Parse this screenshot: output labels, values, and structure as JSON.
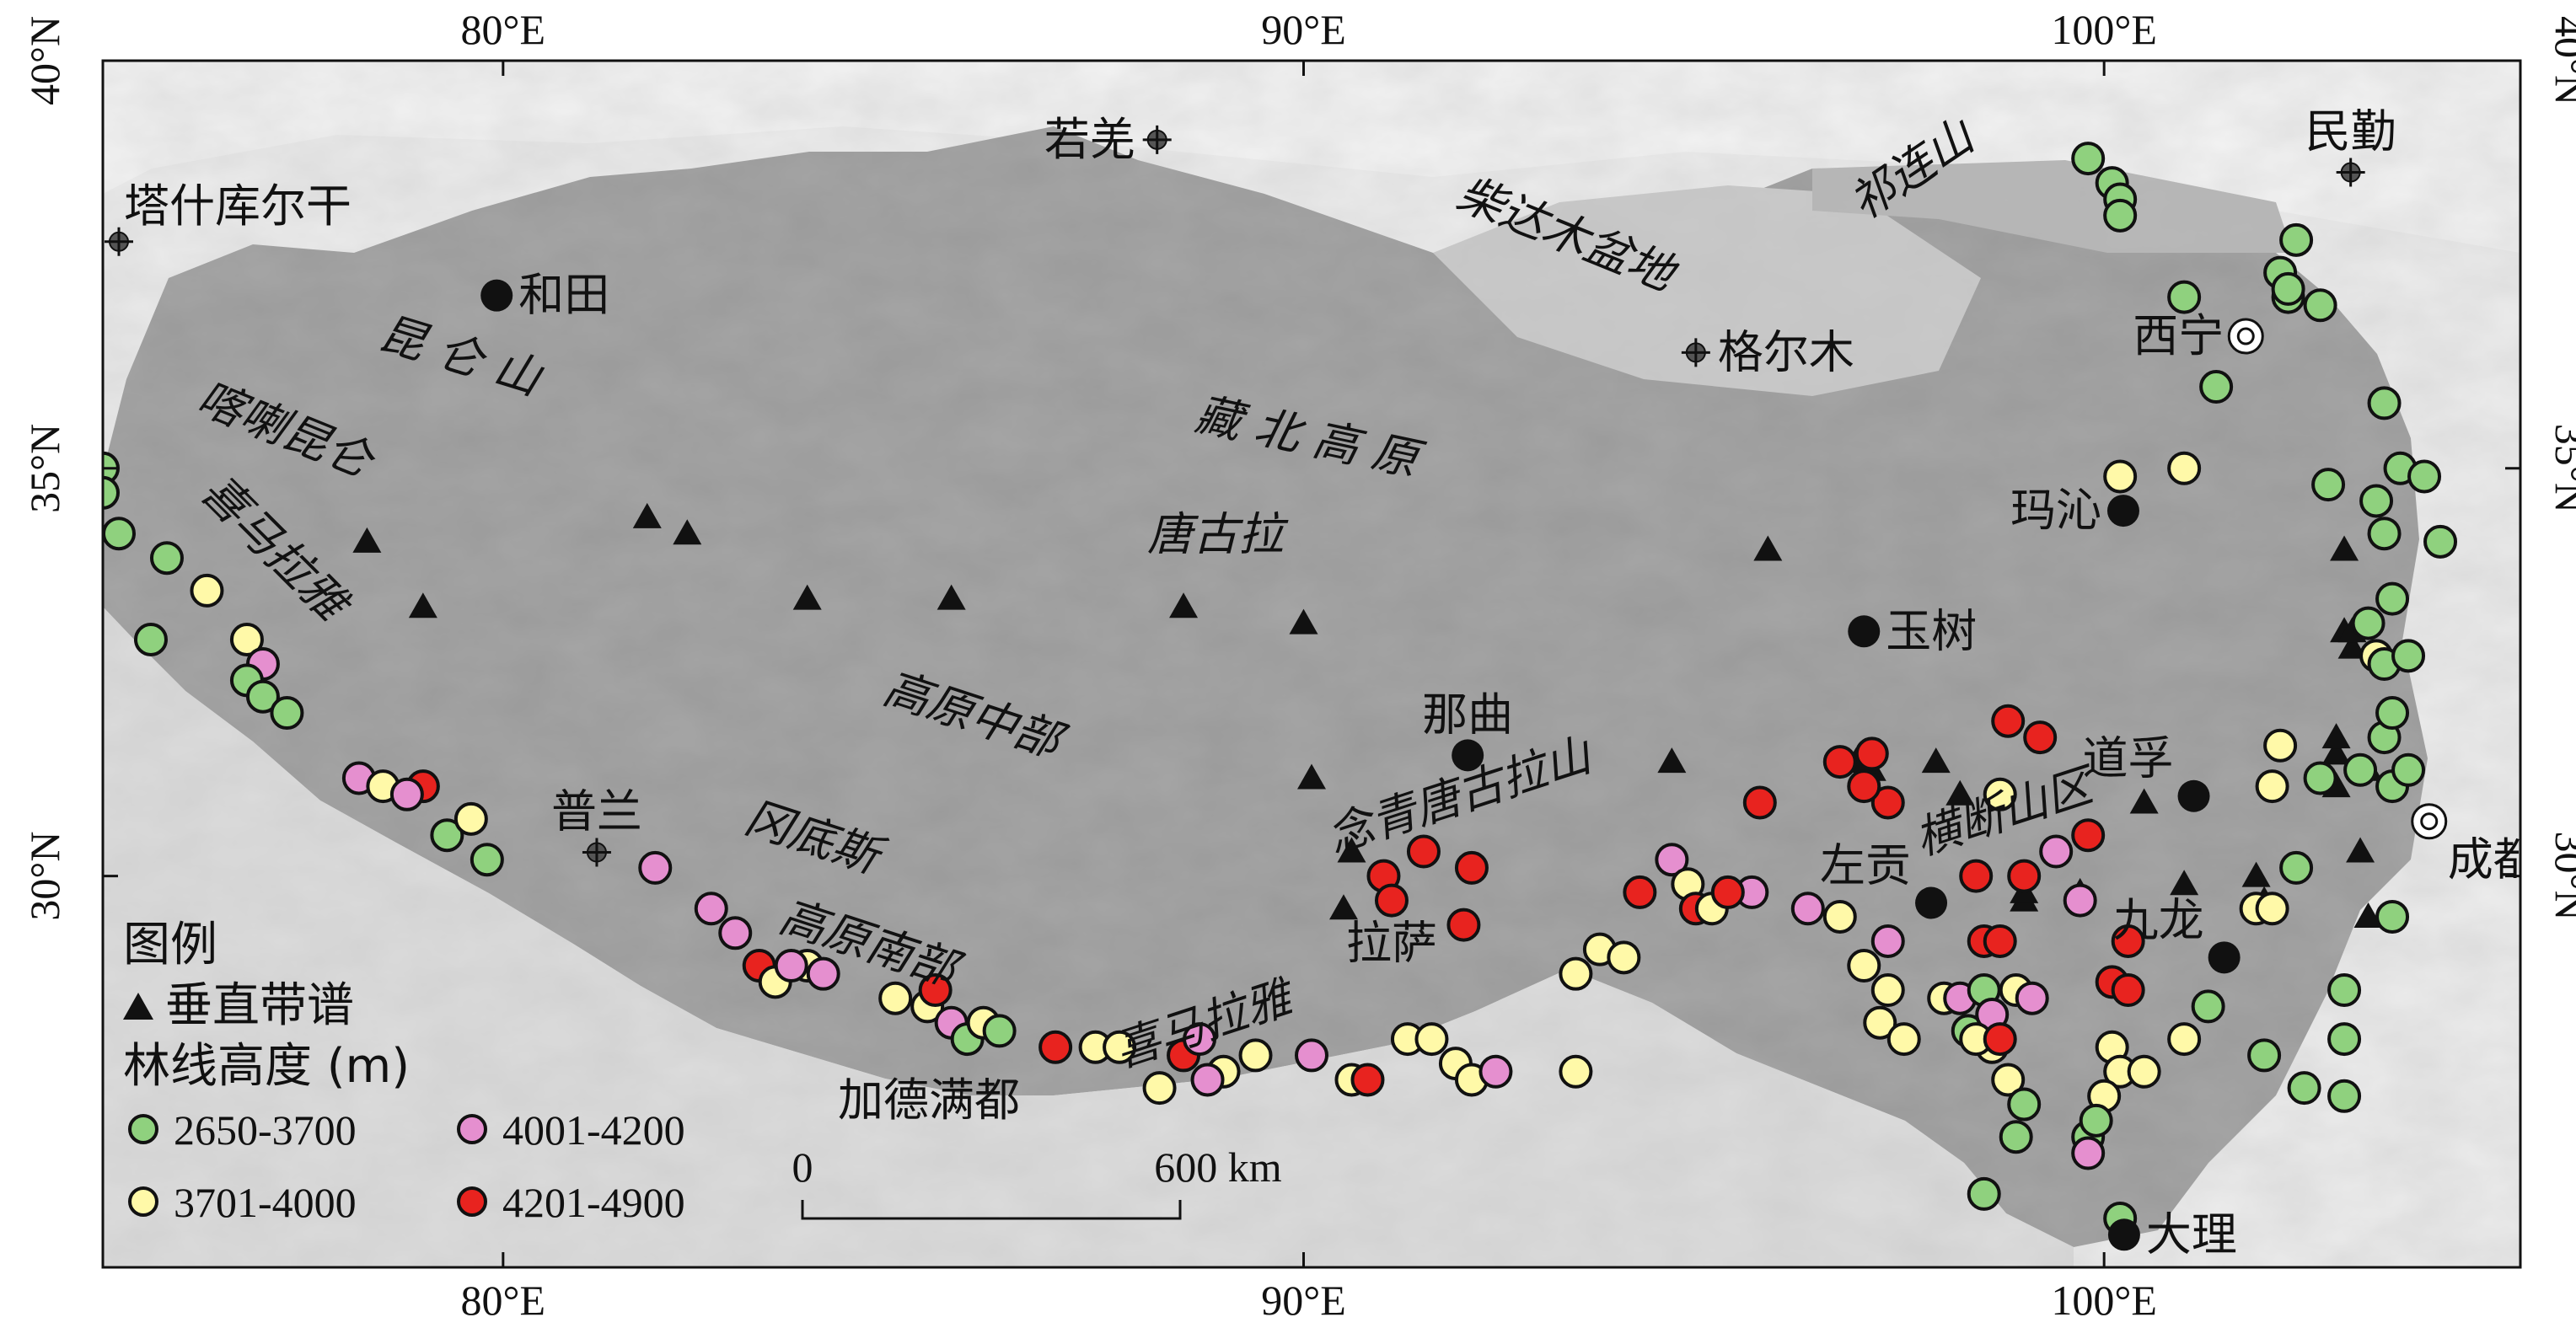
{
  "axes": {
    "lon_ticks": [
      {
        "lon": 80,
        "label": "80°E"
      },
      {
        "lon": 90,
        "label": "90°E"
      },
      {
        "lon": 100,
        "label": "100°E"
      }
    ],
    "lat_ticks": [
      {
        "lat": 40,
        "label": "40°N"
      },
      {
        "lat": 35,
        "label": "35°N"
      },
      {
        "lat": 30,
        "label": "30°N"
      }
    ],
    "lon_range": [
      75,
      105.2
    ],
    "lat_range": [
      25.2,
      40
    ]
  },
  "colors": {
    "green": "#8fd17e",
    "yellow": "#fff9a8",
    "pink": "#e58fcf",
    "red": "#e8231f",
    "plateau": "#9a9a9a",
    "lowland": "#ececec"
  },
  "cities": [
    {
      "name": "塔什库尔干",
      "lon": 75.2,
      "lat": 37.78,
      "marker": "crosshair",
      "label_pos": "above-right"
    },
    {
      "name": "和田",
      "lon": 79.92,
      "lat": 37.12,
      "marker": "dot",
      "label_pos": "right"
    },
    {
      "name": "若羌",
      "lon": 88.17,
      "lat": 39.03,
      "marker": "crosshair",
      "label_pos": "left"
    },
    {
      "name": "民勤",
      "lon": 103.08,
      "lat": 38.63,
      "marker": "crosshair",
      "label_pos": "above"
    },
    {
      "name": "格尔木",
      "lon": 94.9,
      "lat": 36.42,
      "marker": "crosshair",
      "label_pos": "right"
    },
    {
      "name": "西宁",
      "lon": 101.77,
      "lat": 36.62,
      "marker": "ring",
      "label_pos": "left"
    },
    {
      "name": "玛沁",
      "lon": 100.24,
      "lat": 34.48,
      "marker": "dot",
      "label_pos": "left"
    },
    {
      "name": "玉树",
      "lon": 97.0,
      "lat": 33.0,
      "marker": "dot",
      "label_pos": "right"
    },
    {
      "name": "那曲",
      "lon": 92.05,
      "lat": 31.48,
      "marker": "dot",
      "label_pos": "above"
    },
    {
      "name": "普兰",
      "lon": 81.17,
      "lat": 30.29,
      "marker": "crosshair",
      "label_pos": "above"
    },
    {
      "name": "拉萨",
      "lon": 91.1,
      "lat": 29.65,
      "marker": "none",
      "label_pos": "below"
    },
    {
      "name": "道孚",
      "lon": 101.12,
      "lat": 30.98,
      "marker": "dot",
      "label_pos": "above-left"
    },
    {
      "name": "成都",
      "lon": 104.06,
      "lat": 30.67,
      "marker": "ring",
      "label_pos": "below-right"
    },
    {
      "name": "左贡",
      "lon": 97.84,
      "lat": 29.67,
      "marker": "dot",
      "label_pos": "above-left"
    },
    {
      "name": "九龙",
      "lon": 101.5,
      "lat": 29.0,
      "marker": "dot",
      "label_pos": "above-left"
    },
    {
      "name": "加德满都",
      "lon": 85.32,
      "lat": 27.72,
      "marker": "none",
      "label_pos": "below"
    },
    {
      "name": "大理",
      "lon": 100.25,
      "lat": 25.6,
      "marker": "dot",
      "label_pos": "right"
    }
  ],
  "regions": [
    {
      "name": "昆 仑 山",
      "lon": 79.4,
      "lat": 36.2,
      "rot": 17
    },
    {
      "name": "喀喇昆仑",
      "lon": 77.2,
      "lat": 35.3,
      "rot": 22
    },
    {
      "name": "喜马拉雅",
      "lon": 77.0,
      "lat": 33.9,
      "rot": 45
    },
    {
      "name": "祁连山",
      "lon": 97.7,
      "lat": 38.5,
      "rot": -34
    },
    {
      "name": "柴达木盆地",
      "lon": 93.2,
      "lat": 37.7,
      "rot": 22
    },
    {
      "name": "藏 北 高 原",
      "lon": 90.0,
      "lat": 35.2,
      "rot": 12
    },
    {
      "name": "唐古拉",
      "lon": 88.9,
      "lat": 34.0,
      "rot": 0
    },
    {
      "name": "高原中部",
      "lon": 85.8,
      "lat": 31.8,
      "rot": 18
    },
    {
      "name": "冈底斯",
      "lon": 83.8,
      "lat": 30.3,
      "rot": 18
    },
    {
      "name": "高原南部",
      "lon": 84.5,
      "lat": 29.0,
      "rot": 18
    },
    {
      "name": "喜马拉雅",
      "lon": 88.8,
      "lat": 28.0,
      "rot": -18
    },
    {
      "name": "念青唐古拉山",
      "lon": 92.0,
      "lat": 30.8,
      "rot": -18
    },
    {
      "name": "横断山区",
      "lon": 98.8,
      "lat": 30.6,
      "rot": -18
    }
  ],
  "legend": {
    "title": "图例",
    "vertical_spectrum": "垂直带谱",
    "treeline_title": "林线高度 (m)",
    "classes": [
      {
        "label": "2650-3700",
        "color": "#8fd17e"
      },
      {
        "label": "3701-4000",
        "color": "#fff9a8"
      },
      {
        "label": "4001-4200",
        "color": "#e58fcf"
      },
      {
        "label": "4201-4900",
        "color": "#e8231f"
      }
    ]
  },
  "scalebar": {
    "start_label": "0",
    "end_label": "600 km"
  },
  "triangles": [
    [
      78.3,
      34.1
    ],
    [
      79.0,
      33.3
    ],
    [
      81.8,
      34.4
    ],
    [
      82.3,
      34.2
    ],
    [
      83.8,
      33.4
    ],
    [
      85.6,
      33.4
    ],
    [
      88.5,
      33.3
    ],
    [
      90.0,
      33.1
    ],
    [
      90.1,
      31.2
    ],
    [
      90.6,
      30.3
    ],
    [
      90.5,
      29.6
    ],
    [
      95.8,
      34.0
    ],
    [
      94.6,
      31.4
    ],
    [
      96.9,
      31.4
    ],
    [
      97.1,
      31.3
    ],
    [
      97.9,
      31.4
    ],
    [
      98.2,
      31.0
    ],
    [
      99.0,
      29.7
    ],
    [
      99.0,
      29.8
    ],
    [
      99.7,
      29.8
    ],
    [
      100.5,
      30.9
    ],
    [
      101.0,
      29.9
    ],
    [
      101.9,
      30.0
    ],
    [
      102.0,
      29.7
    ],
    [
      102.9,
      31.5
    ],
    [
      102.9,
      31.1
    ],
    [
      103.0,
      33.0
    ],
    [
      103.1,
      32.8
    ],
    [
      103.1,
      33.0
    ],
    [
      103.0,
      34.0
    ],
    [
      103.3,
      31.3
    ],
    [
      103.7,
      31.3
    ],
    [
      103.3,
      29.5
    ],
    [
      103.2,
      30.3
    ],
    [
      102.9,
      31.7
    ]
  ],
  "points": [
    {
      "c": "green",
      "lon": 75.0,
      "lat": 35.0
    },
    {
      "c": "green",
      "lon": 75.0,
      "lat": 34.7
    },
    {
      "c": "green",
      "lon": 75.2,
      "lat": 34.2
    },
    {
      "c": "green",
      "lon": 75.8,
      "lat": 33.9
    },
    {
      "c": "green",
      "lon": 75.6,
      "lat": 32.9
    },
    {
      "c": "yellow",
      "lon": 76.3,
      "lat": 33.5
    },
    {
      "c": "yellow",
      "lon": 76.8,
      "lat": 32.9
    },
    {
      "c": "pink",
      "lon": 77.0,
      "lat": 32.6
    },
    {
      "c": "green",
      "lon": 76.8,
      "lat": 32.4
    },
    {
      "c": "green",
      "lon": 77.0,
      "lat": 32.2
    },
    {
      "c": "green",
      "lon": 77.3,
      "lat": 32.0
    },
    {
      "c": "pink",
      "lon": 78.2,
      "lat": 31.2
    },
    {
      "c": "yellow",
      "lon": 78.5,
      "lat": 31.1
    },
    {
      "c": "red",
      "lon": 79.0,
      "lat": 31.1
    },
    {
      "c": "pink",
      "lon": 78.8,
      "lat": 31.0
    },
    {
      "c": "green",
      "lon": 79.3,
      "lat": 30.5
    },
    {
      "c": "yellow",
      "lon": 79.6,
      "lat": 30.7
    },
    {
      "c": "green",
      "lon": 79.8,
      "lat": 30.2
    },
    {
      "c": "pink",
      "lon": 81.9,
      "lat": 30.1
    },
    {
      "c": "pink",
      "lon": 82.6,
      "lat": 29.6
    },
    {
      "c": "pink",
      "lon": 82.9,
      "lat": 29.3
    },
    {
      "c": "red",
      "lon": 83.2,
      "lat": 28.9
    },
    {
      "c": "yellow",
      "lon": 83.4,
      "lat": 28.7
    },
    {
      "c": "yellow",
      "lon": 83.8,
      "lat": 28.9
    },
    {
      "c": "pink",
      "lon": 84.0,
      "lat": 28.8
    },
    {
      "c": "pink",
      "lon": 83.6,
      "lat": 28.9
    },
    {
      "c": "yellow",
      "lon": 84.9,
      "lat": 28.5
    },
    {
      "c": "yellow",
      "lon": 85.3,
      "lat": 28.4
    },
    {
      "c": "red",
      "lon": 85.4,
      "lat": 28.6
    },
    {
      "c": "pink",
      "lon": 85.6,
      "lat": 28.2
    },
    {
      "c": "green",
      "lon": 85.8,
      "lat": 28.0
    },
    {
      "c": "yellow",
      "lon": 86.0,
      "lat": 28.2
    },
    {
      "c": "green",
      "lon": 86.2,
      "lat": 28.1
    },
    {
      "c": "red",
      "lon": 86.9,
      "lat": 27.9
    },
    {
      "c": "yellow",
      "lon": 87.4,
      "lat": 27.9
    },
    {
      "c": "yellow",
      "lon": 87.7,
      "lat": 27.9
    },
    {
      "c": "yellow",
      "lon": 88.2,
      "lat": 27.4
    },
    {
      "c": "red",
      "lon": 88.5,
      "lat": 27.8
    },
    {
      "c": "pink",
      "lon": 88.7,
      "lat": 28.0
    },
    {
      "c": "yellow",
      "lon": 89.0,
      "lat": 27.6
    },
    {
      "c": "pink",
      "lon": 88.8,
      "lat": 27.5
    },
    {
      "c": "yellow",
      "lon": 89.4,
      "lat": 27.8
    },
    {
      "c": "pink",
      "lon": 90.1,
      "lat": 27.8
    },
    {
      "c": "yellow",
      "lon": 90.6,
      "lat": 27.5
    },
    {
      "c": "red",
      "lon": 90.8,
      "lat": 27.5
    },
    {
      "c": "yellow",
      "lon": 91.3,
      "lat": 28.0
    },
    {
      "c": "yellow",
      "lon": 91.6,
      "lat": 28.0
    },
    {
      "c": "yellow",
      "lon": 91.9,
      "lat": 27.7
    },
    {
      "c": "yellow",
      "lon": 92.1,
      "lat": 27.5
    },
    {
      "c": "pink",
      "lon": 92.4,
      "lat": 27.6
    },
    {
      "c": "yellow",
      "lon": 93.4,
      "lat": 27.6
    },
    {
      "c": "yellow",
      "lon": 93.4,
      "lat": 28.8
    },
    {
      "c": "yellow",
      "lon": 93.7,
      "lat": 29.1
    },
    {
      "c": "yellow",
      "lon": 94.0,
      "lat": 29.0
    },
    {
      "c": "red",
      "lon": 91.0,
      "lat": 30.0
    },
    {
      "c": "red",
      "lon": 91.1,
      "lat": 29.7
    },
    {
      "c": "red",
      "lon": 91.5,
      "lat": 30.3
    },
    {
      "c": "red",
      "lon": 92.1,
      "lat": 30.1
    },
    {
      "c": "red",
      "lon": 92.0,
      "lat": 29.4
    },
    {
      "c": "red",
      "lon": 94.2,
      "lat": 29.8
    },
    {
      "c": "pink",
      "lon": 94.6,
      "lat": 30.2
    },
    {
      "c": "yellow",
      "lon": 94.8,
      "lat": 29.9
    },
    {
      "c": "red",
      "lon": 94.9,
      "lat": 29.6
    },
    {
      "c": "yellow",
      "lon": 95.1,
      "lat": 29.6
    },
    {
      "c": "pink",
      "lon": 95.6,
      "lat": 29.8
    },
    {
      "c": "red",
      "lon": 95.3,
      "lat": 29.8
    },
    {
      "c": "red",
      "lon": 95.7,
      "lat": 30.9
    },
    {
      "c": "pink",
      "lon": 96.3,
      "lat": 29.6
    },
    {
      "c": "yellow",
      "lon": 96.7,
      "lat": 29.5
    },
    {
      "c": "red",
      "lon": 96.7,
      "lat": 31.4
    },
    {
      "c": "red",
      "lon": 97.1,
      "lat": 31.5
    },
    {
      "c": "red",
      "lon": 97.3,
      "lat": 30.9
    },
    {
      "c": "red",
      "lon": 97.0,
      "lat": 31.1
    },
    {
      "c": "yellow",
      "lon": 97.0,
      "lat": 28.9
    },
    {
      "c": "yellow",
      "lon": 97.3,
      "lat": 28.6
    },
    {
      "c": "pink",
      "lon": 97.3,
      "lat": 29.2
    },
    {
      "c": "yellow",
      "lon": 97.2,
      "lat": 28.2
    },
    {
      "c": "yellow",
      "lon": 97.5,
      "lat": 28.0
    },
    {
      "c": "yellow",
      "lon": 98.0,
      "lat": 28.5
    },
    {
      "c": "pink",
      "lon": 98.2,
      "lat": 28.5
    },
    {
      "c": "green",
      "lon": 98.3,
      "lat": 28.1
    },
    {
      "c": "green",
      "lon": 98.5,
      "lat": 28.6
    },
    {
      "c": "pink",
      "lon": 98.6,
      "lat": 28.3
    },
    {
      "c": "red",
      "lon": 98.5,
      "lat": 29.2
    },
    {
      "c": "red",
      "lon": 98.7,
      "lat": 29.2
    },
    {
      "c": "yellow",
      "lon": 98.9,
      "lat": 28.6
    },
    {
      "c": "pink",
      "lon": 99.1,
      "lat": 28.5
    },
    {
      "c": "yellow",
      "lon": 98.6,
      "lat": 27.9
    },
    {
      "c": "yellow",
      "lon": 98.8,
      "lat": 27.5
    },
    {
      "c": "green",
      "lon": 99.0,
      "lat": 27.2
    },
    {
      "c": "green",
      "lon": 98.9,
      "lat": 26.8
    },
    {
      "c": "green",
      "lon": 98.5,
      "lat": 26.1
    },
    {
      "c": "yellow",
      "lon": 98.4,
      "lat": 28.0
    },
    {
      "c": "red",
      "lon": 98.7,
      "lat": 28.0
    },
    {
      "c": "red",
      "lon": 98.4,
      "lat": 30.0
    },
    {
      "c": "yellow",
      "lon": 98.7,
      "lat": 31.0
    },
    {
      "c": "red",
      "lon": 98.8,
      "lat": 31.9
    },
    {
      "c": "red",
      "lon": 99.2,
      "lat": 31.7
    },
    {
      "c": "red",
      "lon": 99.0,
      "lat": 30.0
    },
    {
      "c": "pink",
      "lon": 99.4,
      "lat": 30.3
    },
    {
      "c": "red",
      "lon": 99.8,
      "lat": 30.5
    },
    {
      "c": "pink",
      "lon": 99.7,
      "lat": 29.7
    },
    {
      "c": "yellow",
      "lon": 100.1,
      "lat": 27.9
    },
    {
      "c": "yellow",
      "lon": 100.2,
      "lat": 27.6
    },
    {
      "c": "yellow",
      "lon": 100.0,
      "lat": 27.3
    },
    {
      "c": "green",
      "lon": 99.8,
      "lat": 26.8
    },
    {
      "c": "pink",
      "lon": 99.8,
      "lat": 26.6
    },
    {
      "c": "red",
      "lon": 100.1,
      "lat": 28.7
    },
    {
      "c": "red",
      "lon": 100.3,
      "lat": 29.2
    },
    {
      "c": "red",
      "lon": 100.3,
      "lat": 28.6
    },
    {
      "c": "green",
      "lon": 99.9,
      "lat": 27.0
    },
    {
      "c": "green",
      "lon": 100.2,
      "lat": 25.8
    },
    {
      "c": "yellow",
      "lon": 100.5,
      "lat": 27.6
    },
    {
      "c": "yellow",
      "lon": 101.0,
      "lat": 28.0
    },
    {
      "c": "green",
      "lon": 101.3,
      "lat": 28.4
    },
    {
      "c": "green",
      "lon": 102.0,
      "lat": 27.8
    },
    {
      "c": "green",
      "lon": 102.5,
      "lat": 27.4
    },
    {
      "c": "green",
      "lon": 103.0,
      "lat": 27.3
    },
    {
      "c": "green",
      "lon": 103.0,
      "lat": 28.0
    },
    {
      "c": "green",
      "lon": 103.0,
      "lat": 28.6
    },
    {
      "c": "yellow",
      "lon": 101.9,
      "lat": 29.6
    },
    {
      "c": "yellow",
      "lon": 102.1,
      "lat": 29.6
    },
    {
      "c": "green",
      "lon": 102.4,
      "lat": 30.1
    },
    {
      "c": "yellow",
      "lon": 102.1,
      "lat": 31.1
    },
    {
      "c": "yellow",
      "lon": 102.2,
      "lat": 31.6
    },
    {
      "c": "green",
      "lon": 102.7,
      "lat": 31.2
    },
    {
      "c": "green",
      "lon": 103.2,
      "lat": 31.3
    },
    {
      "c": "green",
      "lon": 103.5,
      "lat": 31.7
    },
    {
      "c": "green",
      "lon": 103.6,
      "lat": 31.1
    },
    {
      "c": "green",
      "lon": 103.6,
      "lat": 32.0
    },
    {
      "c": "green",
      "lon": 103.8,
      "lat": 31.3
    },
    {
      "c": "green",
      "lon": 103.6,
      "lat": 29.5
    },
    {
      "c": "yellow",
      "lon": 103.4,
      "lat": 32.7
    },
    {
      "c": "green",
      "lon": 103.5,
      "lat": 32.6
    },
    {
      "c": "green",
      "lon": 103.3,
      "lat": 33.1
    },
    {
      "c": "green",
      "lon": 103.8,
      "lat": 32.7
    },
    {
      "c": "green",
      "lon": 103.6,
      "lat": 33.4
    },
    {
      "c": "green",
      "lon": 103.5,
      "lat": 34.2
    },
    {
      "c": "green",
      "lon": 103.4,
      "lat": 34.6
    },
    {
      "c": "green",
      "lon": 103.7,
      "lat": 35.0
    },
    {
      "c": "green",
      "lon": 104.0,
      "lat": 34.9
    },
    {
      "c": "green",
      "lon": 104.2,
      "lat": 34.1
    },
    {
      "c": "green",
      "lon": 103.5,
      "lat": 35.8
    },
    {
      "c": "green",
      "lon": 102.8,
      "lat": 34.8
    },
    {
      "c": "yellow",
      "lon": 100.2,
      "lat": 34.9
    },
    {
      "c": "yellow",
      "lon": 101.0,
      "lat": 35.0
    },
    {
      "c": "green",
      "lon": 101.4,
      "lat": 36.0
    },
    {
      "c": "green",
      "lon": 101.0,
      "lat": 37.1
    },
    {
      "c": "green",
      "lon": 102.2,
      "lat": 37.4
    },
    {
      "c": "green",
      "lon": 102.3,
      "lat": 37.1
    },
    {
      "c": "green",
      "lon": 102.7,
      "lat": 37.0
    },
    {
      "c": "green",
      "lon": 102.4,
      "lat": 37.8
    },
    {
      "c": "green",
      "lon": 102.3,
      "lat": 37.2
    },
    {
      "c": "green",
      "lon": 99.8,
      "lat": 38.8
    },
    {
      "c": "green",
      "lon": 100.1,
      "lat": 38.5
    },
    {
      "c": "green",
      "lon": 100.2,
      "lat": 38.3
    },
    {
      "c": "green",
      "lon": 100.2,
      "lat": 38.1
    }
  ]
}
